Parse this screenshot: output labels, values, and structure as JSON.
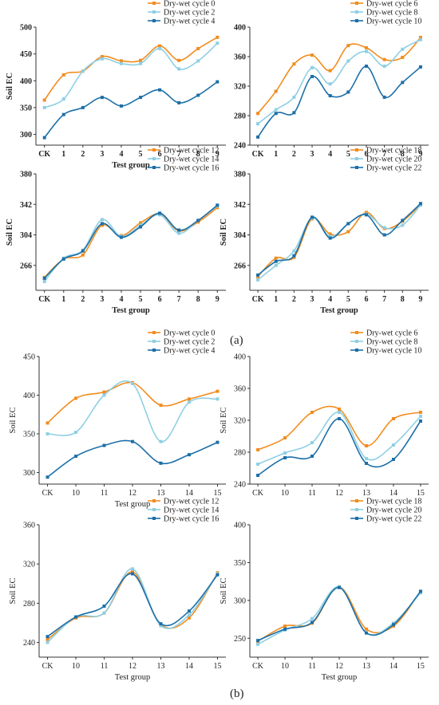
{
  "figure_labels": [
    "(a)",
    "(b)"
  ],
  "colors": {
    "orange": "#F28C1E",
    "lightblue": "#8ECFE4",
    "darkblue": "#1B6FA8"
  },
  "chart_data": [
    {
      "type": "line",
      "bold": true,
      "ylabel": "Soil EC",
      "xlabel": "Test group",
      "categories": [
        "CK",
        "1",
        "2",
        "3",
        "4",
        "5",
        "6",
        "7",
        "8",
        "9"
      ],
      "yticks": [
        300,
        350,
        400,
        450,
        500
      ],
      "ylim": [
        280,
        500
      ],
      "legend_position": "top-right",
      "series": [
        {
          "name": "Dry-wet cycle 0",
          "color": "orange",
          "values": [
            364,
            411,
            418,
            445,
            437,
            438,
            465,
            438,
            460,
            481
          ]
        },
        {
          "name": "Dry-wet cycle 2",
          "color": "lightblue",
          "values": [
            350,
            366,
            418,
            441,
            432,
            432,
            460,
            422,
            437,
            470
          ]
        },
        {
          "name": "Dry-wet cycle 4",
          "color": "darkblue",
          "values": [
            294,
            337,
            350,
            369,
            353,
            369,
            383,
            359,
            373,
            398
          ]
        }
      ]
    },
    {
      "type": "line",
      "bold": true,
      "ylabel": "",
      "xlabel": "",
      "categories": [
        "CK",
        "1",
        "2",
        "3",
        "4",
        "5",
        "6",
        "7",
        "8",
        "9"
      ],
      "yticks": [
        240,
        280,
        320,
        360,
        400
      ],
      "ylim": [
        240,
        400
      ],
      "legend_position": "top-right",
      "series": [
        {
          "name": "Dry-wet cycle 6",
          "color": "orange",
          "values": [
            283,
            313,
            350,
            362,
            341,
            375,
            372,
            356,
            359,
            386
          ]
        },
        {
          "name": "Dry-wet cycle 8",
          "color": "lightblue",
          "values": [
            269,
            288,
            305,
            345,
            323,
            354,
            367,
            347,
            370,
            383
          ]
        },
        {
          "name": "Dry-wet cycle 10",
          "color": "darkblue",
          "values": [
            251,
            283,
            284,
            333,
            307,
            312,
            347,
            305,
            325,
            346
          ]
        }
      ]
    },
    {
      "type": "line",
      "bold": true,
      "ylabel": "Soil EC",
      "xlabel": "Test group",
      "categories": [
        "CK",
        "1",
        "2",
        "3",
        "4",
        "5",
        "6",
        "7",
        "8",
        "9"
      ],
      "yticks": [
        266,
        304,
        342,
        380
      ],
      "ylim": [
        235,
        380
      ],
      "legend_position": "top-right",
      "series": [
        {
          "name": "Dry-wet cycle 12",
          "color": "orange",
          "values": [
            251,
            274,
            279,
            316,
            303,
            319,
            330,
            309,
            320,
            338
          ]
        },
        {
          "name": "Dry-wet cycle 14",
          "color": "lightblue",
          "values": [
            246,
            275,
            285,
            323,
            302,
            316,
            329,
            306,
            322,
            340
          ]
        },
        {
          "name": "Dry-wet cycle 16",
          "color": "darkblue",
          "values": [
            250,
            274,
            284,
            318,
            301,
            314,
            331,
            310,
            322,
            341
          ]
        }
      ]
    },
    {
      "type": "line",
      "bold": true,
      "ylabel": "Soil EC",
      "xlabel": "Test group",
      "categories": [
        "CK",
        "1",
        "2",
        "3",
        "4",
        "5",
        "6",
        "7",
        "8",
        "9"
      ],
      "yticks": [
        266,
        304,
        342,
        380
      ],
      "ylim": [
        235,
        380
      ],
      "legend_position": "top-right",
      "series": [
        {
          "name": "Dry-wet cycle 18",
          "color": "orange",
          "values": [
            252,
            275,
            276,
            324,
            305,
            308,
            332,
            312,
            321,
            342
          ]
        },
        {
          "name": "Dry-wet cycle 20",
          "color": "lightblue",
          "values": [
            248,
            266,
            284,
            325,
            302,
            318,
            330,
            313,
            316,
            341
          ]
        },
        {
          "name": "Dry-wet cycle 22",
          "color": "darkblue",
          "values": [
            254,
            271,
            278,
            326,
            300,
            318,
            329,
            304,
            322,
            343
          ]
        }
      ]
    },
    {
      "type": "line",
      "smooth": true,
      "bold": false,
      "ylabel": "Soil EC",
      "xlabel": "Test group",
      "categories": [
        "CK",
        "10",
        "11",
        "12",
        "13",
        "14",
        "15"
      ],
      "yticks": [
        300,
        350,
        400,
        450
      ],
      "ylim": [
        285,
        450
      ],
      "legend_position": "top-right",
      "series": [
        {
          "name": "Dry-wet cycle 0",
          "color": "orange",
          "values": [
            364,
            396,
            404,
            416,
            387,
            395,
            405
          ]
        },
        {
          "name": "Dry-wet cycle 2",
          "color": "lightblue",
          "values": [
            350,
            352,
            400,
            415,
            340,
            391,
            395
          ]
        },
        {
          "name": "Dry-wet cycle 4",
          "color": "darkblue",
          "values": [
            294,
            321,
            335,
            340,
            312,
            323,
            339
          ]
        }
      ]
    },
    {
      "type": "line",
      "smooth": true,
      "bold": false,
      "ylabel": "Soil EC",
      "xlabel": "",
      "categories": [
        "CK",
        "10",
        "11",
        "12",
        "13",
        "14",
        "15"
      ],
      "yticks": [
        240,
        280,
        320,
        360,
        400
      ],
      "ylim": [
        240,
        400
      ],
      "legend_position": "top-right",
      "series": [
        {
          "name": "Dry-wet cycle 6",
          "color": "orange",
          "values": [
            283,
            298,
            330,
            334,
            288,
            322,
            330
          ]
        },
        {
          "name": "Dry-wet cycle 8",
          "color": "lightblue",
          "values": [
            265,
            279,
            292,
            330,
            272,
            289,
            325
          ]
        },
        {
          "name": "Dry-wet cycle 10",
          "color": "darkblue",
          "values": [
            251,
            273,
            275,
            322,
            266,
            271,
            319
          ]
        }
      ]
    },
    {
      "type": "line",
      "smooth": true,
      "bold": false,
      "ylabel": "Soil EC",
      "xlabel": "Test group",
      "categories": [
        "CK",
        "10",
        "11",
        "12",
        "13",
        "14",
        "15"
      ],
      "yticks": [
        240,
        280,
        320,
        360
      ],
      "ylim": [
        225,
        360
      ],
      "legend_position": "top-right",
      "series": [
        {
          "name": "Dry-wet cycle 12",
          "color": "orange",
          "values": [
            243,
            265,
            270,
            312,
            258,
            265,
            311
          ]
        },
        {
          "name": "Dry-wet cycle 14",
          "color": "lightblue",
          "values": [
            240,
            266,
            270,
            315,
            257,
            268,
            310
          ]
        },
        {
          "name": "Dry-wet cycle 16",
          "color": "darkblue",
          "values": [
            246,
            266,
            277,
            310,
            259,
            272,
            309
          ]
        }
      ]
    },
    {
      "type": "line",
      "smooth": true,
      "bold": false,
      "ylabel": "Soil EC",
      "xlabel": "Test group",
      "categories": [
        "CK",
        "10",
        "11",
        "12",
        "13",
        "14",
        "15"
      ],
      "yticks": [
        250,
        300,
        350,
        400
      ],
      "ylim": [
        225,
        400
      ],
      "legend_position": "top-right",
      "series": [
        {
          "name": "Dry-wet cycle 18",
          "color": "orange",
          "values": [
            246,
            266,
            270,
            318,
            262,
            266,
            312
          ]
        },
        {
          "name": "Dry-wet cycle 20",
          "color": "lightblue",
          "values": [
            242,
            261,
            276,
            318,
            257,
            270,
            310
          ]
        },
        {
          "name": "Dry-wet cycle 22",
          "color": "darkblue",
          "values": [
            247,
            262,
            271,
            317,
            257,
            268,
            312
          ]
        }
      ]
    }
  ]
}
